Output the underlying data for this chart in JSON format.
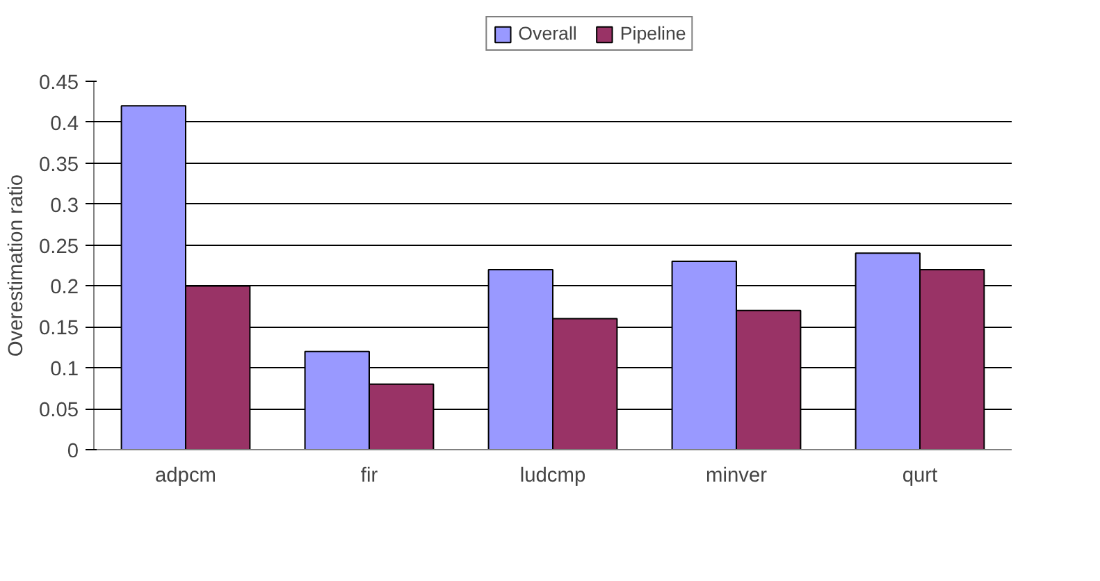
{
  "chart_data": {
    "type": "bar",
    "categories": [
      "adpcm",
      "fir",
      "ludcmp",
      "minver",
      "qurt"
    ],
    "series": [
      {
        "name": "Overall",
        "color": "#9999ff",
        "values": [
          0.42,
          0.12,
          0.22,
          0.23,
          0.24
        ]
      },
      {
        "name": "Pipeline",
        "color": "#993366",
        "values": [
          0.2,
          0.08,
          0.16,
          0.17,
          0.22
        ]
      }
    ],
    "ylabel": "Overestimation ratio",
    "ylim": [
      0,
      0.45
    ],
    "yticks": [
      0,
      0.05,
      0.1,
      0.15,
      0.2,
      0.25,
      0.3,
      0.35,
      0.4,
      0.45
    ],
    "grid": "y",
    "legend": "top"
  }
}
